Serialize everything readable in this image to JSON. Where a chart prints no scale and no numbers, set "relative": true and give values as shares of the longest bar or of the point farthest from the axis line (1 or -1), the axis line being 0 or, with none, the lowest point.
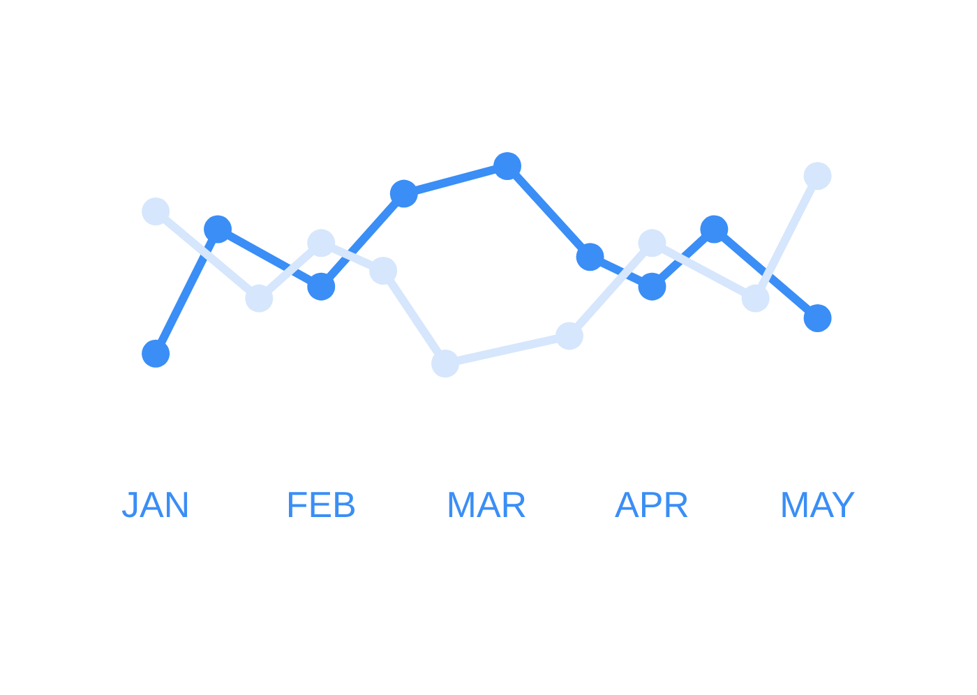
{
  "chart_data": {
    "type": "line",
    "relative": true,
    "marker": "circle",
    "line_style": "solid",
    "legend": false,
    "categories": [
      "JAN",
      null,
      null,
      null,
      null,
      null,
      null,
      null,
      "FEB",
      null,
      null,
      null,
      null,
      null,
      null,
      null,
      "MAR",
      null,
      null,
      null,
      null,
      null,
      null,
      null,
      "APR",
      null,
      null,
      null,
      null,
      null,
      null,
      null,
      "MAY"
    ],
    "series": [
      {
        "color": "#d6e6fc",
        "values": [
          0.77,
          null,
          null,
          null,
          null,
          0.33,
          null,
          null,
          0.61,
          null,
          null,
          0.47,
          null,
          null,
          0,
          null,
          null,
          null,
          null,
          null,
          0.14,
          null,
          null,
          null,
          0.61,
          null,
          null,
          null,
          null,
          0.33,
          null,
          null,
          0.95
        ]
      },
      {
        "color": "#3a8ef6",
        "values": [
          0.05,
          null,
          null,
          0.68,
          null,
          null,
          null,
          null,
          0.39,
          null,
          null,
          null,
          0.86,
          null,
          null,
          null,
          null,
          1,
          null,
          null,
          null,
          0.54,
          null,
          null,
          0.39,
          null,
          null,
          0.68,
          null,
          null,
          null,
          null,
          0.23
        ]
      }
    ]
  }
}
